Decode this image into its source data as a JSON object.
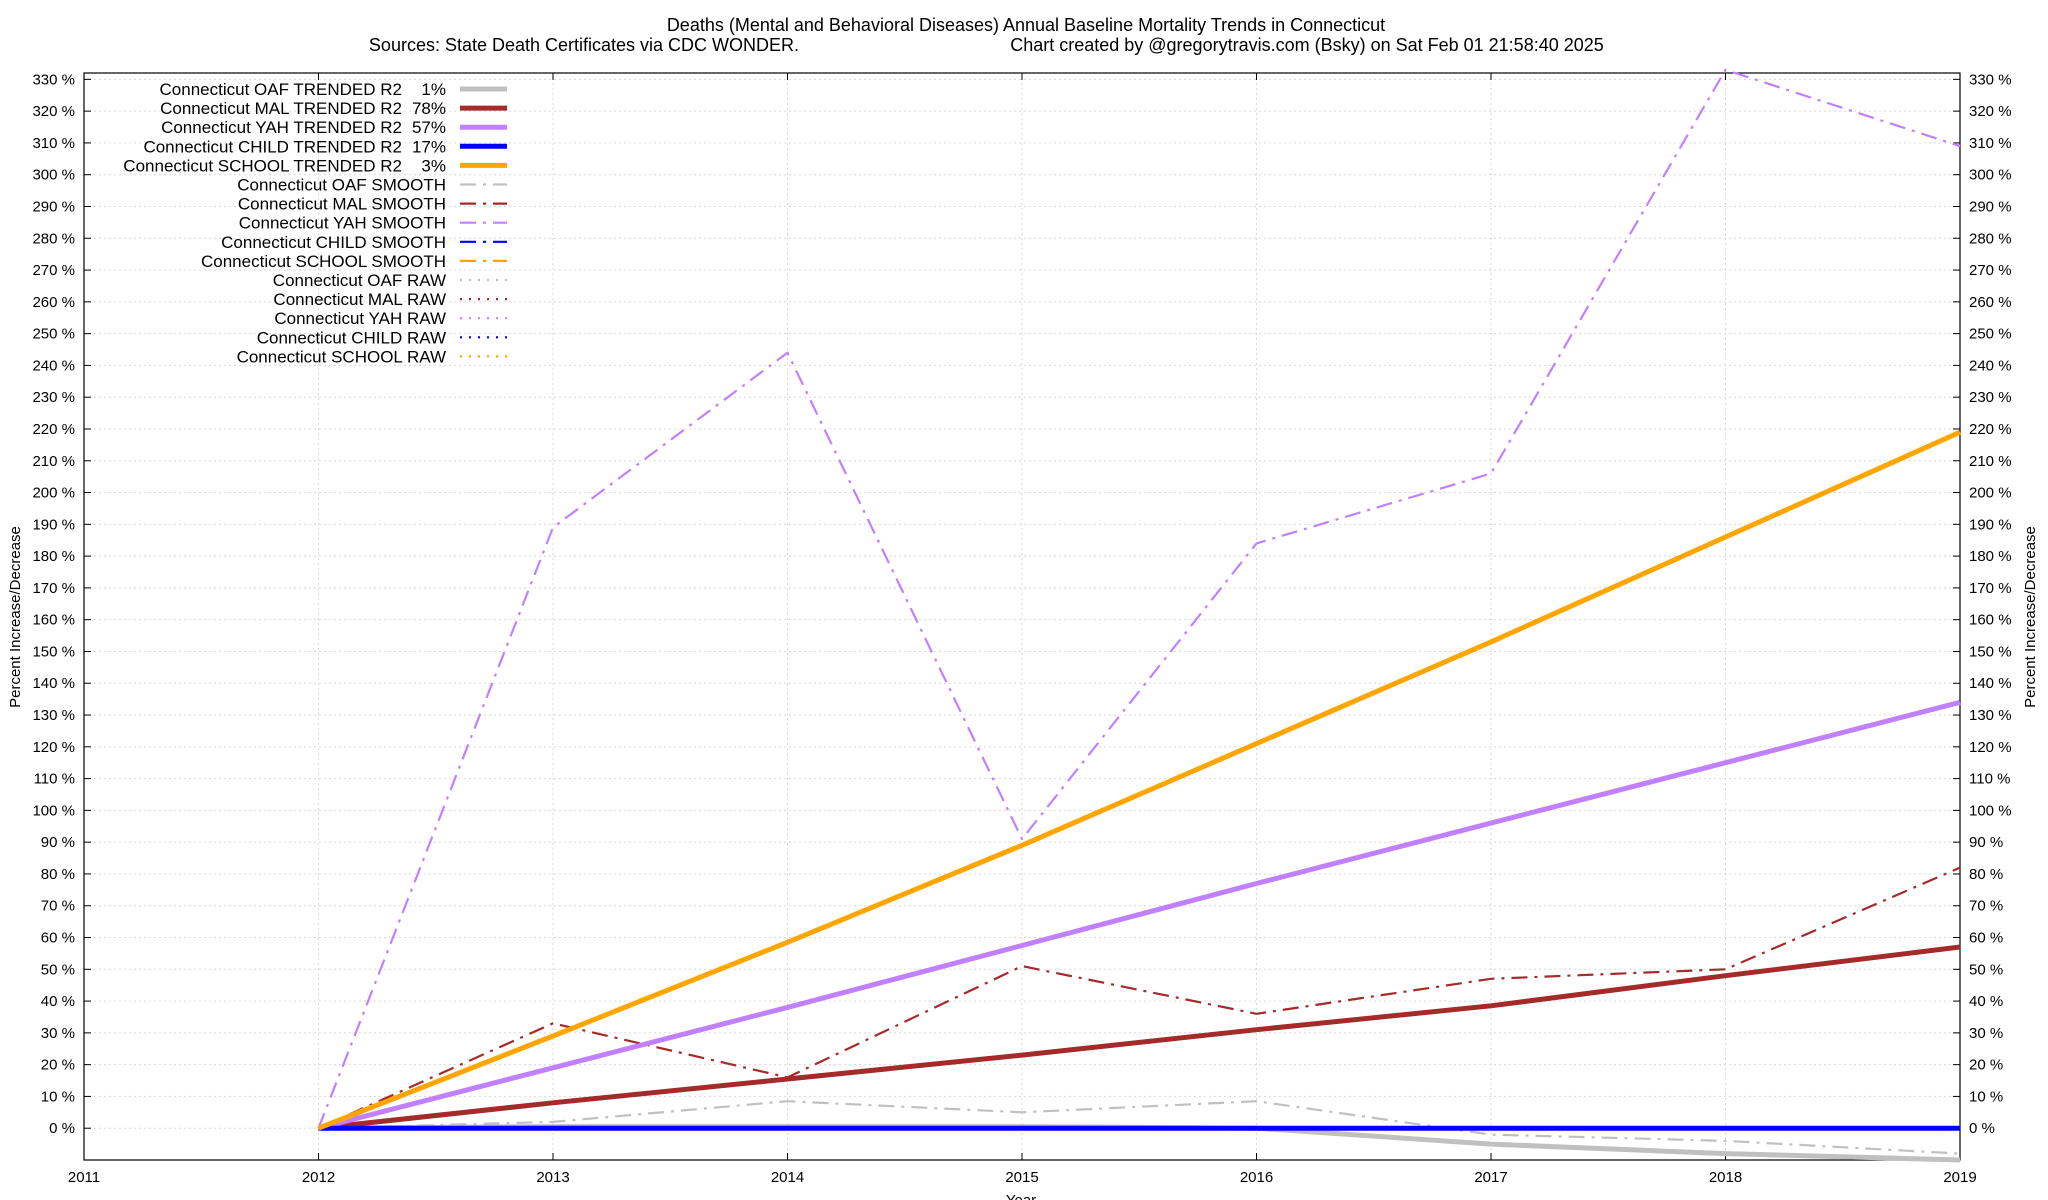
{
  "chart_data": {
    "type": "line",
    "title": "Deaths (Mental and Behavioral Diseases)  Annual Baseline Mortality Trends in Connecticut",
    "subtitle_left": "Sources: State Death Certificates via CDC WONDER.",
    "subtitle_right": "Chart created by @gregorytravis.com (Bsky) on Sat Feb 01 21:58:40 2025",
    "xlabel": "Year",
    "ylabel_left": "Percent Increase/Decrease",
    "ylabel_right": "Percent Increase/Decrease",
    "xlim": [
      2011,
      2019
    ],
    "ylim": [
      -10,
      332
    ],
    "x_ticks": [
      "2011",
      "2012",
      "2013",
      "2014",
      "2015",
      "2016",
      "2017",
      "2018",
      "2019"
    ],
    "y_ticks": [
      "0 %",
      "10 %",
      "20 %",
      "30 %",
      "40 %",
      "50 %",
      "60 %",
      "70 %",
      "80 %",
      "90 %",
      "100 %",
      "110 %",
      "120 %",
      "130 %",
      "140 %",
      "150 %",
      "160 %",
      "170 %",
      "180 %",
      "190 %",
      "200 %",
      "210 %",
      "220 %",
      "230 %",
      "240 %",
      "250 %",
      "260 %",
      "270 %",
      "280 %",
      "290 %",
      "300 %",
      "310 %",
      "320 %",
      "330 %"
    ],
    "grid": true,
    "legend_position": "top-left",
    "series": [
      {
        "name": "Connecticut OAF TRENDED R2",
        "r2": "1%",
        "style": "solid",
        "color": "#c0c0c0",
        "x": [
          2012,
          2013,
          2014,
          2015,
          2016,
          2017,
          2018,
          2019
        ],
        "y": [
          0,
          0.5,
          0.5,
          0.5,
          0,
          -5,
          -8,
          -10
        ]
      },
      {
        "name": "Connecticut MAL TRENDED R2",
        "r2": "78%",
        "style": "solid",
        "color": "#a52a2a",
        "x": [
          2012,
          2013,
          2014,
          2015,
          2016,
          2017,
          2018,
          2019
        ],
        "y": [
          0,
          8,
          15.5,
          23,
          31,
          38.5,
          48,
          57
        ]
      },
      {
        "name": "Connecticut YAH TRENDED R2",
        "r2": "57%",
        "style": "solid",
        "color": "#c080ff",
        "x": [
          2012,
          2013,
          2014,
          2015,
          2016,
          2017,
          2018,
          2019
        ],
        "y": [
          0,
          19,
          38,
          57.5,
          77,
          96,
          115,
          134
        ]
      },
      {
        "name": "Connecticut CHILD TRENDED R2",
        "r2": "17%",
        "style": "solid",
        "color": "#0000ff",
        "x": [
          2012,
          2013,
          2014,
          2015,
          2016,
          2017,
          2018,
          2019
        ],
        "y": [
          0,
          0,
          0,
          0,
          0,
          0,
          0,
          0
        ]
      },
      {
        "name": "Connecticut SCHOOL TRENDED R2",
        "r2": "3%",
        "style": "solid",
        "color": "#ffa500",
        "x": [
          2012,
          2013,
          2014,
          2015,
          2016,
          2017,
          2018,
          2019
        ],
        "y": [
          0,
          29,
          58.5,
          89,
          121,
          153,
          186,
          219
        ]
      },
      {
        "name": "Connecticut OAF SMOOTH",
        "style": "dashed",
        "color": "#c0c0c0",
        "x": [
          2012,
          2013,
          2014,
          2015,
          2016,
          2017,
          2018,
          2019
        ],
        "y": [
          0,
          2,
          8.5,
          5,
          8.5,
          -2,
          -4,
          -8
        ]
      },
      {
        "name": "Connecticut MAL SMOOTH",
        "style": "dashed",
        "color": "#a52a2a",
        "x": [
          2012,
          2013,
          2014,
          2015,
          2016,
          2017,
          2018,
          2019
        ],
        "y": [
          0,
          33,
          16,
          51,
          36,
          47,
          50,
          82
        ]
      },
      {
        "name": "Connecticut YAH SMOOTH",
        "style": "dashed",
        "color": "#c080ff",
        "x": [
          2012,
          2013,
          2014,
          2015,
          2016,
          2017,
          2018,
          2019
        ],
        "y": [
          0,
          189,
          244,
          91,
          184,
          206,
          333,
          309
        ]
      },
      {
        "name": "Connecticut CHILD SMOOTH",
        "style": "dashed",
        "color": "#0000ff",
        "x": [],
        "y": []
      },
      {
        "name": "Connecticut SCHOOL SMOOTH",
        "style": "dashed",
        "color": "#ffa500",
        "x": [],
        "y": []
      },
      {
        "name": "Connecticut OAF RAW",
        "style": "dotted",
        "color": "#c0c0c0",
        "x": [],
        "y": []
      },
      {
        "name": "Connecticut MAL RAW",
        "style": "dotted",
        "color": "#a52a2a",
        "x": [],
        "y": []
      },
      {
        "name": "Connecticut YAH RAW",
        "style": "dotted",
        "color": "#c080ff",
        "x": [],
        "y": []
      },
      {
        "name": "Connecticut CHILD RAW",
        "style": "dotted",
        "color": "#0000ff",
        "x": [],
        "y": []
      },
      {
        "name": "Connecticut SCHOOL RAW",
        "style": "dotted",
        "color": "#ffa500",
        "x": [],
        "y": []
      }
    ]
  }
}
